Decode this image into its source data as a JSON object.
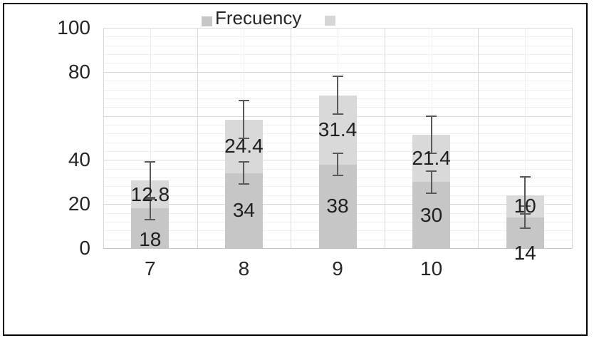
{
  "legend": {
    "items": [
      {
        "label": "Frecuency",
        "color": "#c6c6c6"
      },
      {
        "label": "",
        "color": "#d6d6d6"
      }
    ]
  },
  "chart_data": {
    "type": "bar",
    "stacked": true,
    "title": "",
    "categories": [
      "7",
      "8",
      "9",
      "10",
      ""
    ],
    "series": [
      {
        "name": "Frecuency",
        "color": "#c6c6c6",
        "values": [
          18,
          34,
          38,
          30,
          14
        ],
        "data_labels": [
          "18",
          "34",
          "38",
          "30",
          "14"
        ],
        "error_low": [
          13,
          29,
          33,
          25,
          9
        ],
        "error_high": [
          23,
          39,
          43,
          35,
          19
        ]
      },
      {
        "name": "",
        "color": "#d9d9d9",
        "values": [
          12.8,
          24.4,
          31.4,
          21.4,
          10
        ],
        "data_labels": [
          "12.8",
          "24.4",
          "31.4",
          "21.4",
          "10"
        ],
        "error_low": [
          22.3,
          49.9,
          60.9,
          42.9,
          15.5
        ],
        "error_high": [
          39.3,
          66.9,
          77.9,
          59.9,
          32.5
        ]
      }
    ],
    "stack_totals": [
      30.8,
      58.4,
      69.4,
      51.4,
      24
    ],
    "ylim": [
      0,
      100
    ],
    "y_major_unit": 20,
    "y_minor_unit": 4,
    "y_ticks_shown": [
      100,
      80,
      40,
      20,
      0
    ],
    "y_tick_labels": [
      "100",
      "80",
      "40",
      "20",
      "0"
    ],
    "grid": true,
    "legend_position": "top",
    "colors": {
      "series1_fill": "#c6c6c6",
      "series2_fill": "#d9d9d9",
      "error_bar": "#595959",
      "major_grid": "#d9d9d9",
      "minor_grid": "#efefef",
      "axis_line": "#c3c3c3",
      "text": "#262626",
      "border": "#000000"
    }
  }
}
